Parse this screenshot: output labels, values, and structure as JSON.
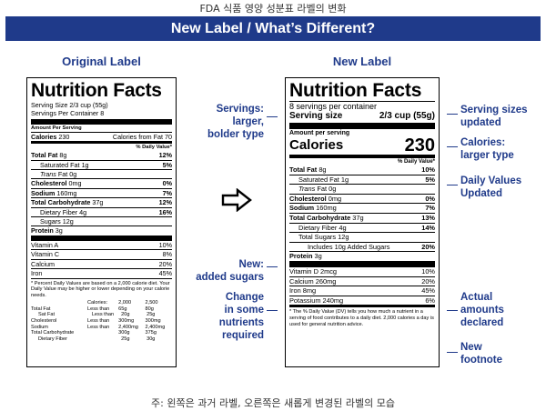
{
  "captions": {
    "top": "FDA 식품 영양 성분표 라벨의 변화",
    "bottom": "주: 왼쪽은 과거 라벨, 오른쪽은 새롭게 변경된 라벨의 모습"
  },
  "banner": {
    "title": "New Label / What’s Different?"
  },
  "columns": {
    "original": "Original Label",
    "new": "New Label"
  },
  "colors": {
    "brand_blue": "#1f3a8a",
    "text": "#000000"
  },
  "icons": {
    "arrow": "right-outline-arrow-icon"
  },
  "annotations": {
    "left": [
      {
        "key": "servings",
        "lines": [
          "Servings:",
          "larger,",
          "bolder type"
        ]
      },
      {
        "key": "added_sugars",
        "lines": [
          "New:",
          "added sugars"
        ]
      },
      {
        "key": "nutrients",
        "lines": [
          "Change",
          "in some",
          "nutrients",
          "required"
        ]
      }
    ],
    "right": [
      {
        "key": "serving_sizes",
        "lines": [
          "Serving sizes",
          "updated"
        ]
      },
      {
        "key": "calories",
        "lines": [
          "Calories:",
          "larger type"
        ]
      },
      {
        "key": "daily_values",
        "lines": [
          "Daily Values",
          "Updated"
        ]
      },
      {
        "key": "actual_amounts",
        "lines": [
          "Actual",
          "amounts",
          "declared"
        ]
      },
      {
        "key": "footnote",
        "lines": [
          "New",
          "footnote"
        ]
      }
    ]
  },
  "original_label": {
    "title": "Nutrition Facts",
    "serving_size": "Serving Size 2/3 cup (55g)",
    "servings_per_container": "Servings Per Container 8",
    "amount_per_serving": "Amount Per Serving",
    "calories_label": "Calories",
    "calories_value": "230",
    "calories_fat": "Calories from Fat 70",
    "dv_header": "% Daily Value*",
    "nutrients": [
      {
        "name": "Total Fat",
        "amount": "8g",
        "dv": "12%",
        "bold": true,
        "indent": 0
      },
      {
        "name": "Saturated Fat",
        "amount": "1g",
        "dv": "5%",
        "bold": false,
        "indent": 1
      },
      {
        "name": "Trans",
        "amount": "Fat 0g",
        "dv": "",
        "bold": false,
        "indent": 1,
        "italic": true
      },
      {
        "name": "Cholesterol",
        "amount": "0mg",
        "dv": "0%",
        "bold": true,
        "indent": 0
      },
      {
        "name": "Sodium",
        "amount": "160mg",
        "dv": "7%",
        "bold": true,
        "indent": 0
      },
      {
        "name": "Total Carbohydrate",
        "amount": "37g",
        "dv": "12%",
        "bold": true,
        "indent": 0
      },
      {
        "name": "Dietary Fiber",
        "amount": "4g",
        "dv": "16%",
        "bold": false,
        "indent": 1
      },
      {
        "name": "Sugars",
        "amount": "12g",
        "dv": "",
        "bold": false,
        "indent": 1
      },
      {
        "name": "Protein",
        "amount": "3g",
        "dv": "",
        "bold": true,
        "indent": 0
      }
    ],
    "vitamins": [
      {
        "name": "Vitamin A",
        "dv": "10%"
      },
      {
        "name": "Vitamin C",
        "dv": "8%"
      },
      {
        "name": "Calcium",
        "dv": "20%"
      },
      {
        "name": "Iron",
        "dv": "45%"
      }
    ],
    "footnote": "* Percent Daily Values are based on a 2,000 calorie diet. Your Daily Value may be higher or lower depending on your calorie needs.",
    "footnote_table": {
      "header": [
        "",
        "Calories:",
        "2,000",
        "2,500"
      ],
      "rows": [
        [
          "Total Fat",
          "Less than",
          "65g",
          "80g"
        ],
        [
          "Sat Fat",
          "Less than",
          "20g",
          "25g"
        ],
        [
          "Cholesterol",
          "Less than",
          "300mg",
          "300mg"
        ],
        [
          "Sodium",
          "Less than",
          "2,400mg",
          "2,400mg"
        ],
        [
          "Total Carbohydrate",
          "",
          "300g",
          "375g"
        ],
        [
          "Dietary Fiber",
          "",
          "25g",
          "30g"
        ]
      ]
    }
  },
  "new_label": {
    "title": "Nutrition Facts",
    "servings_per_container": "8 servings per container",
    "serving_size_label": "Serving size",
    "serving_size_value": "2/3 cup (55g)",
    "amount_per_serving": "Amount per serving",
    "calories_label": "Calories",
    "calories_value": "230",
    "dv_header": "% Daily Value*",
    "nutrients": [
      {
        "name": "Total Fat",
        "amount": "8g",
        "dv": "10%",
        "bold": true,
        "indent": 0
      },
      {
        "name": "Saturated Fat",
        "amount": "1g",
        "dv": "5%",
        "bold": false,
        "indent": 1
      },
      {
        "name": "Trans",
        "amount": "Fat 0g",
        "dv": "",
        "bold": false,
        "indent": 1,
        "italic": true
      },
      {
        "name": "Cholesterol",
        "amount": "0mg",
        "dv": "0%",
        "bold": true,
        "indent": 0
      },
      {
        "name": "Sodium",
        "amount": "160mg",
        "dv": "7%",
        "bold": true,
        "indent": 0
      },
      {
        "name": "Total Carbohydrate",
        "amount": "37g",
        "dv": "13%",
        "bold": true,
        "indent": 0
      },
      {
        "name": "Dietary Fiber",
        "amount": "4g",
        "dv": "14%",
        "bold": false,
        "indent": 1
      },
      {
        "name": "Total Sugars",
        "amount": "12g",
        "dv": "",
        "bold": false,
        "indent": 1
      },
      {
        "name": "Includes 10g Added Sugars",
        "amount": "",
        "dv": "20%",
        "bold": false,
        "indent": 2
      },
      {
        "name": "Protein",
        "amount": "3g",
        "dv": "",
        "bold": true,
        "indent": 0
      }
    ],
    "vitamins": [
      {
        "name": "Vitamin D 2mcg",
        "dv": "10%"
      },
      {
        "name": "Calcium 260mg",
        "dv": "20%"
      },
      {
        "name": "Iron 8mg",
        "dv": "45%"
      },
      {
        "name": "Potassium 240mg",
        "dv": "6%"
      }
    ],
    "footnote": "* The % Daily Value (DV) tells you how much a nutrient in a serving of food contributes to a daily diet. 2,000 calories a day is used for general nutrition advice."
  }
}
